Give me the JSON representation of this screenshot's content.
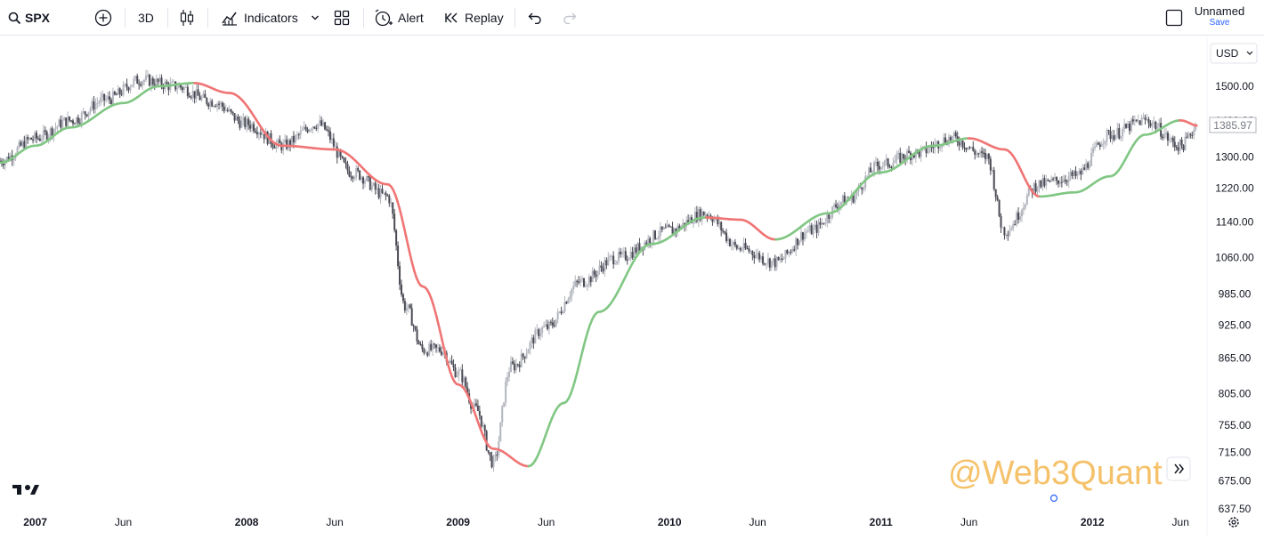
{
  "toolbar": {
    "symbol": "SPX",
    "interval": "3D",
    "indicators_label": "Indicators",
    "alert_label": "Alert",
    "replay_label": "Replay",
    "layout_name": "Unnamed",
    "save_label": "Save",
    "icons": [
      "search-icon",
      "add-symbol-icon",
      "candles-icon",
      "indicators-icon",
      "chevron-down-icon",
      "layouts-icon",
      "alert-icon",
      "replay-icon",
      "undo-icon",
      "redo-icon",
      "checkbox-icon"
    ]
  },
  "chart": {
    "currency": "USD",
    "last_price_label": "1385.97",
    "watermark": "@Web3Quant",
    "colors": {
      "up_candle": "#b2b5be",
      "down_candle": "#4a4a55",
      "ma_up": "#81c784",
      "ma_down": "#f07575",
      "watermark": "#f5c26b"
    }
  },
  "chart_data": {
    "type": "line",
    "title": "",
    "y_scale": "log",
    "y_ticks": [
      1500.0,
      1400.0,
      1300.0,
      1220.0,
      1140.0,
      1060.0,
      985.0,
      925.0,
      865.0,
      805.0,
      755.0,
      715.0,
      675.0,
      637.5
    ],
    "y_tick_labels": [
      "1500.00",
      "1400.00",
      "1300.00",
      "1220.00",
      "1140.00",
      "1060.00",
      "985.00",
      "925.00",
      "865.00",
      "805.00",
      "755.00",
      "715.00",
      "675.00",
      "637.50"
    ],
    "x_ticks": [
      "2007",
      "Jun",
      "2008",
      "Jun",
      "2009",
      "Jun",
      "2010",
      "Jun",
      "2011",
      "Jun",
      "2012",
      "Jun"
    ],
    "x_tick_dates": [
      "2007-01",
      "2007-06",
      "2008-01",
      "2008-06",
      "2009-01",
      "2009-06",
      "2010-01",
      "2010-06",
      "2011-01",
      "2011-06",
      "2012-01",
      "2012-06"
    ],
    "x_range": [
      "2006-11",
      "2012-07"
    ],
    "series": [
      {
        "kind": "candles",
        "x": [
          "2006-11",
          "2007-01",
          "2007-03",
          "2007-05",
          "2007-07",
          "2007-09",
          "2007-11",
          "2008-01",
          "2008-03",
          "2008-05",
          "2008-07",
          "2008-09",
          "2008-10",
          "2008-11",
          "2008-12",
          "2009-01",
          "2009-02",
          "2009-03",
          "2009-04",
          "2009-06",
          "2009-08",
          "2009-10",
          "2010-01",
          "2010-03",
          "2010-05",
          "2010-07",
          "2010-09",
          "2010-11",
          "2011-01",
          "2011-03",
          "2011-05",
          "2011-07",
          "2011-08",
          "2011-10",
          "2011-12",
          "2012-02",
          "2012-04",
          "2012-06",
          "2012-07"
        ],
        "values": [
          1290,
          1350,
          1400,
          1460,
          1520,
          1500,
          1455,
          1390,
          1330,
          1390,
          1260,
          1200,
          960,
          880,
          880,
          840,
          780,
          700,
          850,
          920,
          1010,
          1060,
          1120,
          1160,
          1080,
          1050,
          1120,
          1190,
          1280,
          1310,
          1350,
          1300,
          1120,
          1230,
          1250,
          1360,
          1400,
          1330,
          1385
        ]
      },
      {
        "kind": "moving-average",
        "x": [
          "2006-11",
          "2007-01",
          "2007-03",
          "2007-06",
          "2007-08",
          "2007-10",
          "2007-12",
          "2008-03",
          "2008-06",
          "2008-09",
          "2008-11",
          "2009-01",
          "2009-03",
          "2009-05",
          "2009-07",
          "2009-09",
          "2009-12",
          "2010-03",
          "2010-05",
          "2010-07",
          "2010-10",
          "2011-01",
          "2011-04",
          "2011-06",
          "2011-08",
          "2011-10",
          "2011-12",
          "2012-02",
          "2012-04",
          "2012-06",
          "2012-07"
        ],
        "values": [
          1285,
          1330,
          1380,
          1450,
          1500,
          1510,
          1480,
          1330,
          1320,
          1230,
          1000,
          820,
          720,
          695,
          790,
          950,
          1090,
          1150,
          1145,
          1100,
          1160,
          1260,
          1330,
          1350,
          1320,
          1200,
          1210,
          1250,
          1360,
          1400,
          1385
        ]
      }
    ],
    "grid": false,
    "legend": "none"
  }
}
